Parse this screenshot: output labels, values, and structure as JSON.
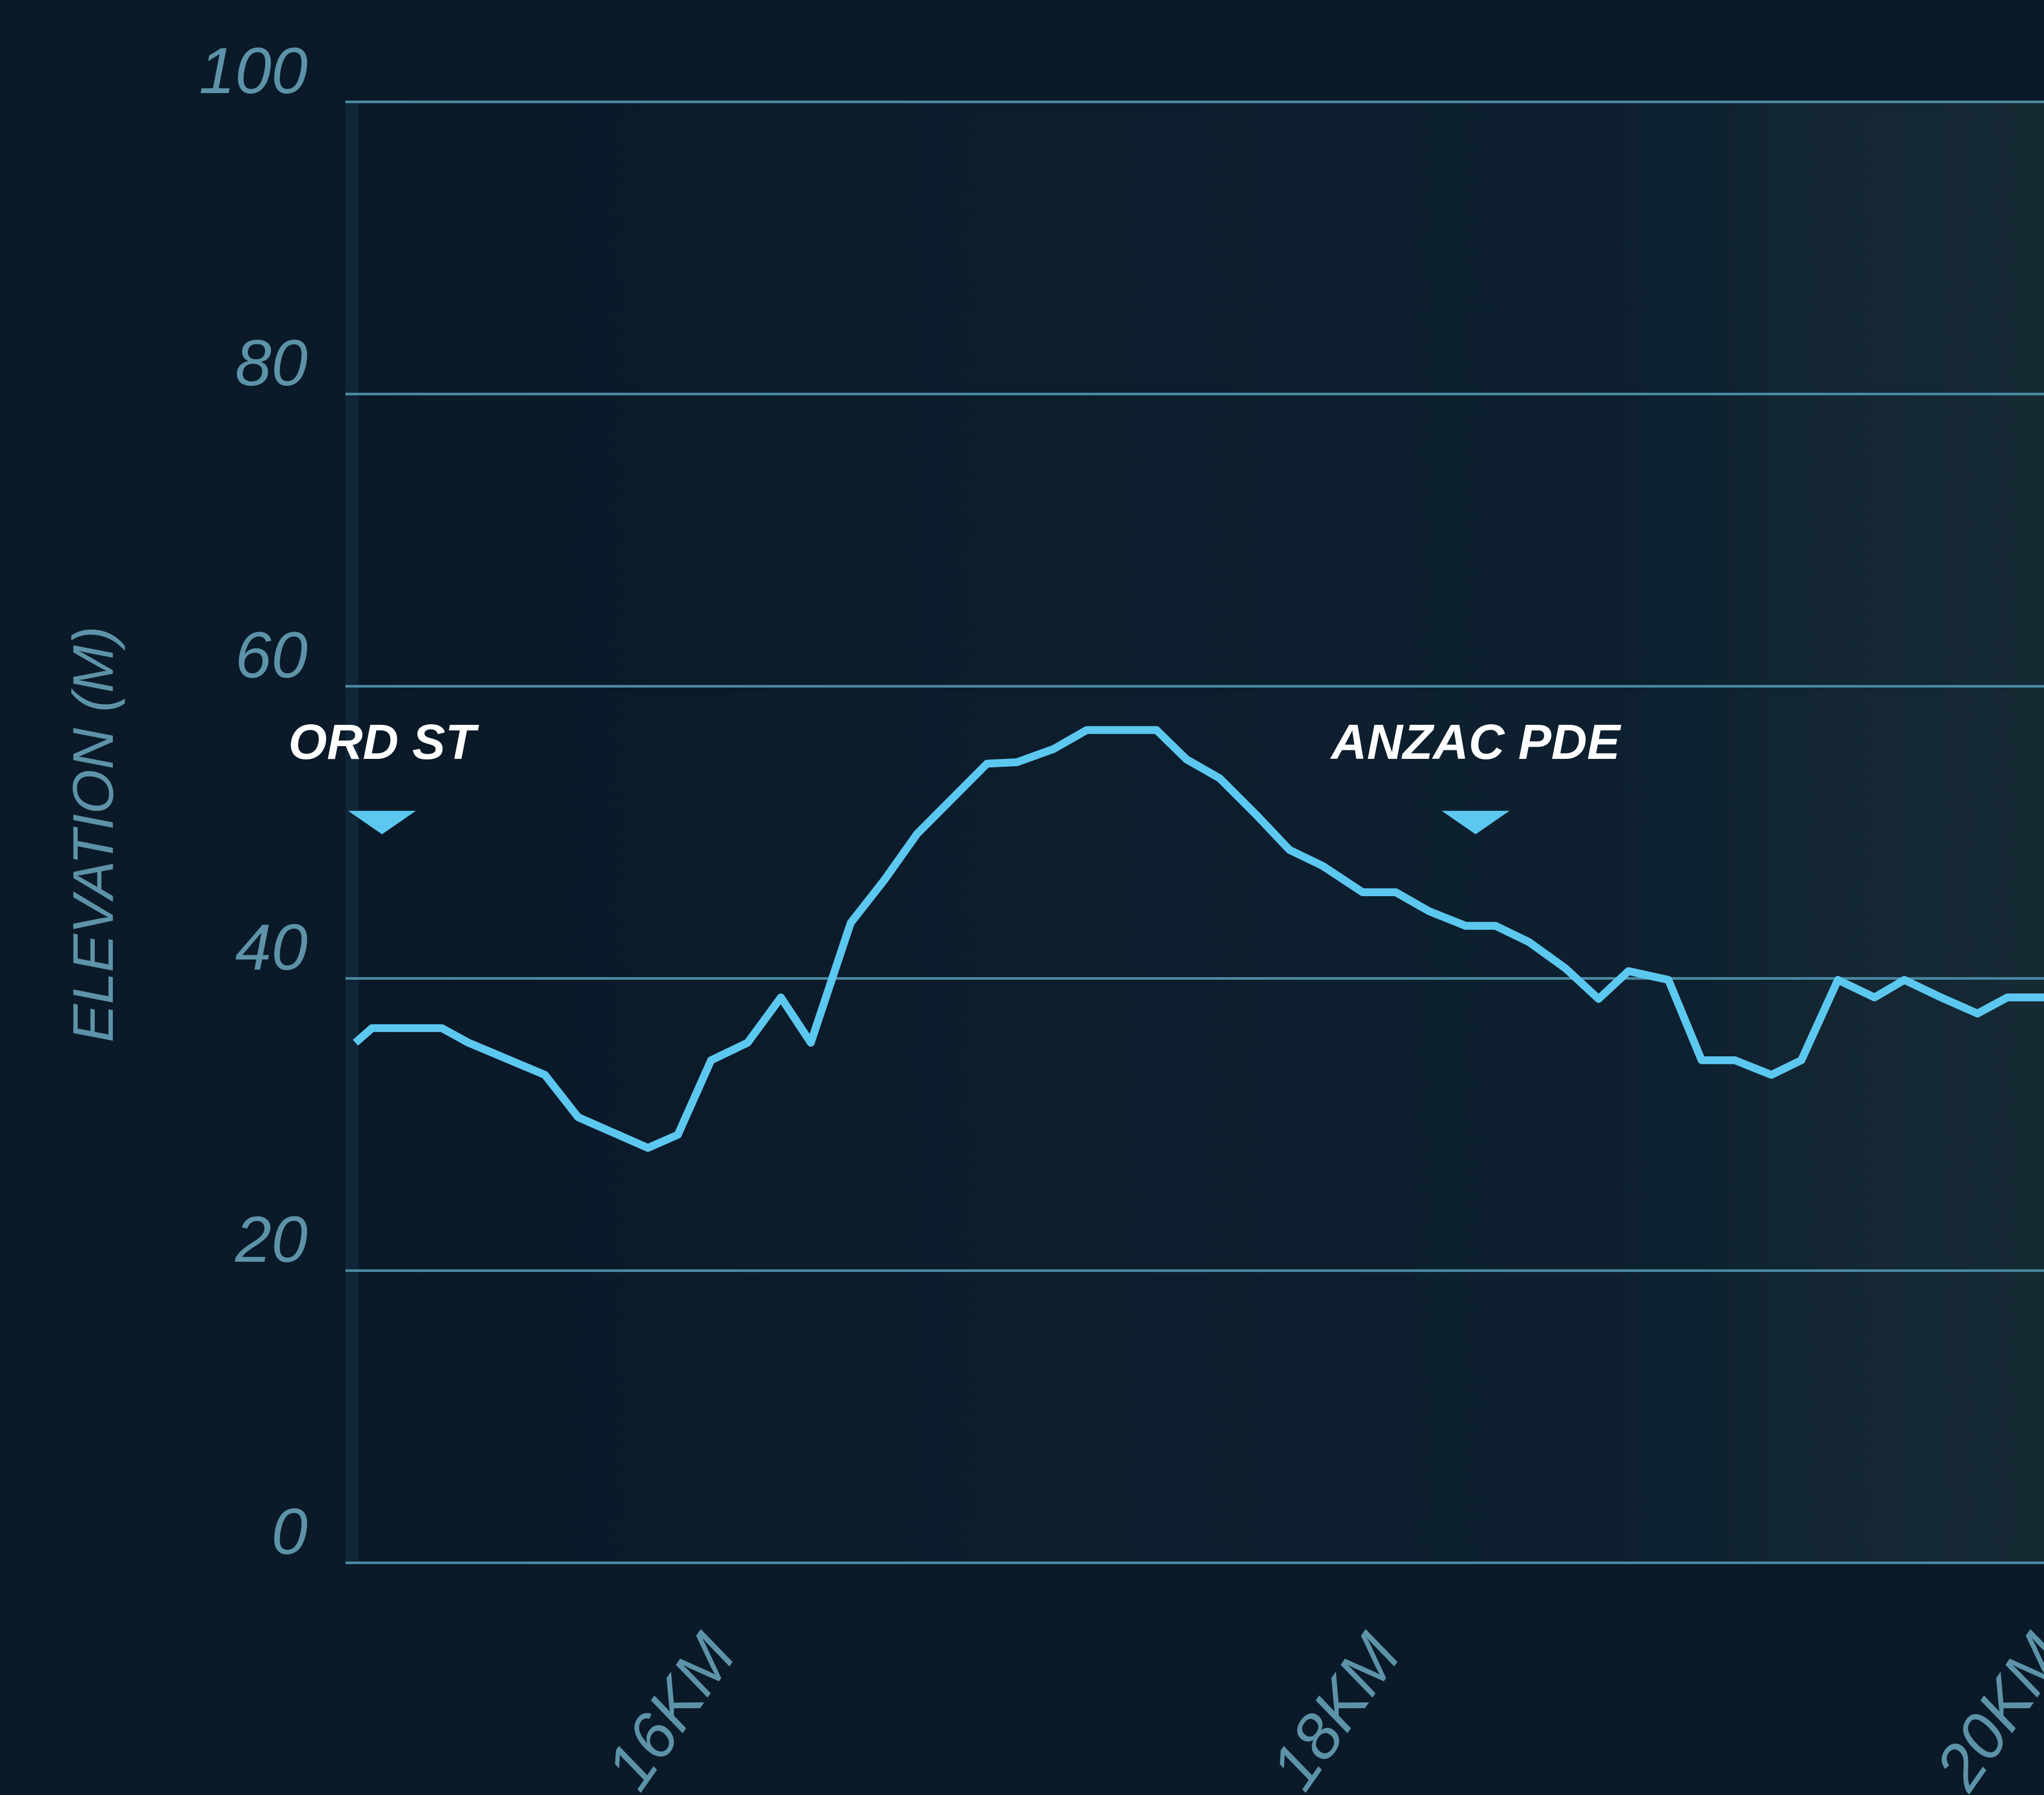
{
  "chart_data": {
    "type": "line",
    "y_label": "ELEVATION (M)",
    "x": [
      15.03,
      15.08,
      15.29,
      15.37,
      15.6,
      15.7,
      15.91,
      16.0,
      16.1,
      16.21,
      16.31,
      16.4,
      16.52,
      16.62,
      16.72,
      16.93,
      17.02,
      17.13,
      17.23,
      17.44,
      17.53,
      17.63,
      17.74,
      17.84,
      17.94,
      18.06,
      18.16,
      18.26,
      18.37,
      18.46,
      18.56,
      18.67,
      18.77,
      18.86,
      18.98,
      19.08,
      19.18,
      19.29,
      19.38,
      19.49,
      19.6,
      19.69,
      19.8,
      19.91,
      20.0,
      20.11
    ],
    "series": [
      {
        "color": "#5cc8f0",
        "values": [
          35.6,
          36.6,
          36.6,
          35.6,
          33.4,
          30.5,
          28.4,
          29.3,
          34.4,
          35.6,
          38.7,
          35.6,
          43.8,
          46.7,
          49.9,
          54.7,
          54.8,
          55.7,
          57.0,
          57.0,
          55.0,
          53.7,
          51.2,
          48.8,
          47.7,
          45.9,
          45.9,
          44.6,
          43.6,
          43.6,
          42.5,
          40.7,
          38.6,
          40.5,
          39.9,
          34.4,
          34.4,
          33.4,
          34.4,
          39.9,
          38.7,
          39.9,
          38.7,
          37.6,
          38.7,
          38.7
        ]
      }
    ],
    "xlim": [
      15,
      20.11
    ],
    "xticks": [
      {
        "value": 16,
        "label": "16KM"
      },
      {
        "value": 18,
        "label": "18KM"
      },
      {
        "value": 20,
        "label": "20KM"
      }
    ],
    "ylim": [
      0,
      100
    ],
    "yticks": [
      0,
      20,
      40,
      60,
      80,
      100
    ],
    "grid": true,
    "annotations": [
      {
        "text": "ORD ST",
        "x": 15.11
      },
      {
        "text": "ANZAC PDE",
        "x": 18.4
      }
    ]
  }
}
